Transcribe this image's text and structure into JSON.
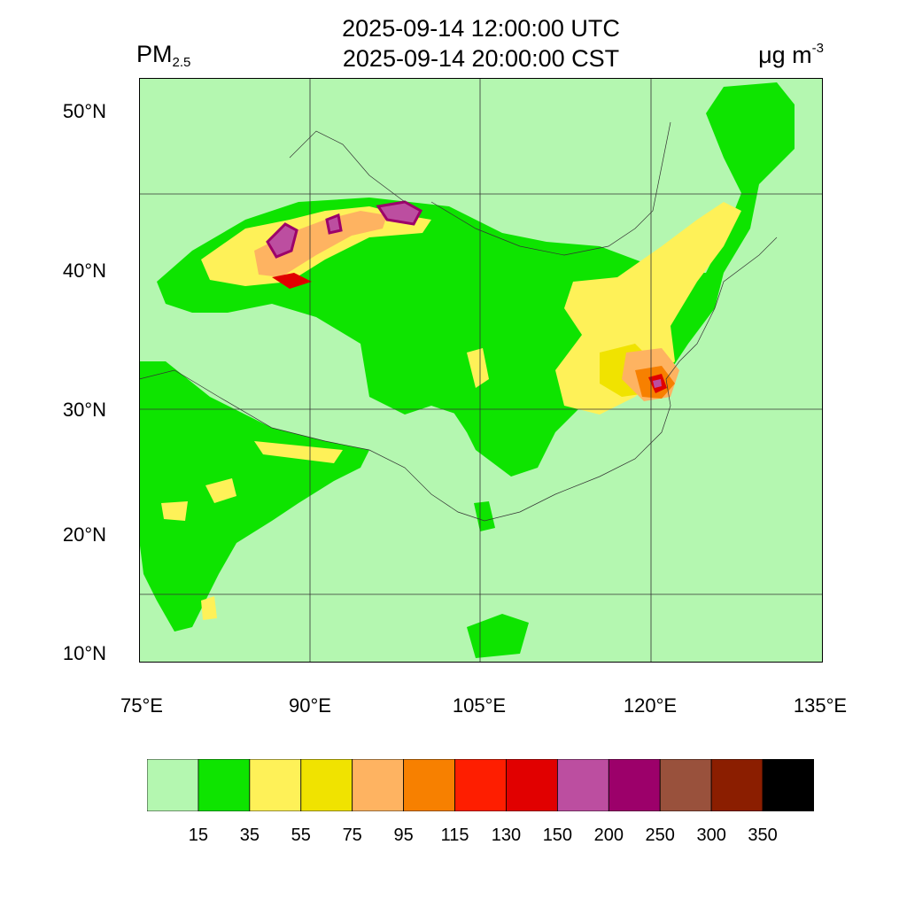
{
  "header": {
    "title_utc": "2025-09-14 12:00:00 UTC",
    "title_local": "2025-09-14 20:00:00 CST",
    "variable_main": "PM",
    "variable_sub": "2.5",
    "unit_main": "μg m",
    "unit_sup": "-3"
  },
  "axes": {
    "lat_labels": [
      "50°N",
      "40°N",
      "30°N",
      "20°N",
      "10°N"
    ],
    "lon_labels": [
      "75°E",
      "90°E",
      "105°E",
      "120°E",
      "135°E"
    ]
  },
  "colorbar": {
    "colors": [
      "#b4f7b0",
      "#0ee400",
      "#fef158",
      "#f0e300",
      "#feb361",
      "#f78000",
      "#fe1e00",
      "#e10000",
      "#bc4ea0",
      "#9c006a",
      "#99513c",
      "#8b1e00",
      "#000000"
    ],
    "labels": [
      "15",
      "35",
      "55",
      "75",
      "95",
      "115",
      "130",
      "150",
      "200",
      "250",
      "300",
      "350"
    ]
  },
  "colors": {
    "background_field": "#b4f7b0",
    "low": "#0ee400",
    "moderate": "#fef158",
    "elevated": "#f0e300",
    "high": "#feb361",
    "very_high": "#f78000",
    "severe": "#e10000",
    "extreme": "#bc4ea0"
  }
}
